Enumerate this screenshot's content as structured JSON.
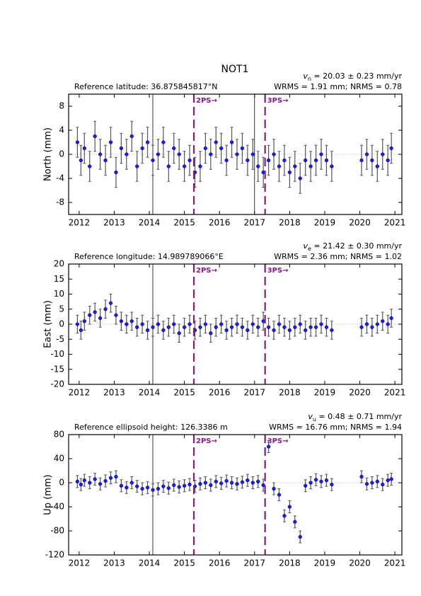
{
  "chart_data": [
    {
      "type": "scatter",
      "title": "NOT1",
      "rate": {
        "symbol": "v",
        "sub": "n",
        "text": " = 20.03 ± 0.23 mm/yr"
      },
      "reference": "Reference latitude: 36.875845817°N",
      "wrms": "WRMS = 1.91 mm; NRMS = 0.78",
      "ylabel": "North (mm)",
      "xlim": [
        2011.7,
        2021.2
      ],
      "xticks": [
        2012,
        2013,
        2014,
        2015,
        2016,
        2017,
        2018,
        2019,
        2020,
        2021
      ],
      "ylim": [
        -10,
        10
      ],
      "yticks": [
        -8,
        -4,
        0,
        4,
        8
      ],
      "color": "#1a1aff",
      "error_color": "#555555",
      "error": 2.5,
      "events": [
        {
          "label": "2PS→",
          "x": 2015.27
        },
        {
          "label": "3PS→",
          "x": 2017.3
        }
      ],
      "reference_lines": [
        2014.1,
        2017.0
      ],
      "x": [
        2011.95,
        2012.05,
        2012.15,
        2012.3,
        2012.45,
        2012.6,
        2012.75,
        2012.9,
        2013.05,
        2013.2,
        2013.35,
        2013.5,
        2013.65,
        2013.8,
        2013.95,
        2014.1,
        2014.25,
        2014.4,
        2014.55,
        2014.7,
        2014.85,
        2015.0,
        2015.15,
        2015.3,
        2015.45,
        2015.6,
        2015.75,
        2015.9,
        2016.05,
        2016.2,
        2016.35,
        2016.5,
        2016.65,
        2016.8,
        2016.95,
        2017.1,
        2017.25,
        2017.4,
        2017.55,
        2017.7,
        2017.85,
        2018.0,
        2018.15,
        2018.3,
        2018.45,
        2018.6,
        2018.75,
        2018.9,
        2019.05,
        2019.2,
        2020.05,
        2020.2,
        2020.35,
        2020.5,
        2020.65,
        2020.8,
        2020.9
      ],
      "values": [
        2,
        -1,
        1,
        -2,
        3,
        0,
        -1,
        2,
        -3,
        1,
        0,
        3,
        -2,
        1,
        2,
        -1,
        0,
        2,
        -2,
        1,
        0,
        -2,
        -1,
        -3,
        -2,
        1,
        0,
        2,
        1,
        -1,
        2,
        0,
        1,
        -1,
        0,
        -2,
        -3,
        -1,
        0,
        -2,
        -1,
        -3,
        -2,
        -4,
        -1,
        -2,
        -1,
        0,
        -1,
        -2,
        -1,
        0,
        -1,
        -2,
        0,
        -1,
        1
      ]
    },
    {
      "type": "scatter",
      "rate": {
        "symbol": "v",
        "sub": "e",
        "text": " = 21.42 ± 0.30 mm/yr"
      },
      "reference": "Reference longitude: 14.989789066°E",
      "wrms": "WRMS = 2.36 mm; NRMS = 1.02",
      "ylabel": "East (mm)",
      "xlim": [
        2011.7,
        2021.2
      ],
      "xticks": [
        2012,
        2013,
        2014,
        2015,
        2016,
        2017,
        2018,
        2019,
        2020,
        2021
      ],
      "ylim": [
        -20,
        20
      ],
      "yticks": [
        -20,
        -15,
        -10,
        -5,
        0,
        5,
        10,
        15,
        20
      ],
      "color": "#1a1aff",
      "error_color": "#555555",
      "error": 3,
      "events": [
        {
          "label": "2PS→",
          "x": 2015.27
        },
        {
          "label": "3PS→",
          "x": 2017.3
        }
      ],
      "reference_lines": [
        2014.1
      ],
      "x": [
        2011.95,
        2012.05,
        2012.15,
        2012.3,
        2012.45,
        2012.6,
        2012.75,
        2012.9,
        2013.05,
        2013.2,
        2013.35,
        2013.5,
        2013.65,
        2013.8,
        2013.95,
        2014.1,
        2014.25,
        2014.4,
        2014.55,
        2014.7,
        2014.85,
        2015.0,
        2015.15,
        2015.3,
        2015.45,
        2015.6,
        2015.75,
        2015.9,
        2016.05,
        2016.2,
        2016.35,
        2016.5,
        2016.65,
        2016.8,
        2016.95,
        2017.1,
        2017.25,
        2017.4,
        2017.55,
        2017.7,
        2017.85,
        2018.0,
        2018.15,
        2018.3,
        2018.45,
        2018.6,
        2018.75,
        2018.9,
        2019.05,
        2019.2,
        2020.05,
        2020.2,
        2020.35,
        2020.5,
        2020.65,
        2020.8,
        2020.9
      ],
      "values": [
        0,
        -2,
        1,
        3,
        4,
        2,
        5,
        7,
        3,
        1,
        0,
        1,
        -1,
        0,
        -2,
        -1,
        0,
        -2,
        -1,
        0,
        -3,
        -1,
        0,
        -2,
        -1,
        0,
        -3,
        -1,
        0,
        -2,
        -1,
        0,
        -1,
        -2,
        0,
        -1,
        1,
        -1,
        -2,
        0,
        -1,
        -2,
        -1,
        0,
        -2,
        -1,
        -1,
        0,
        -1,
        -2,
        -1,
        0,
        -1,
        0,
        1,
        0,
        2
      ]
    },
    {
      "type": "scatter",
      "rate": {
        "symbol": "v",
        "sub": "u",
        "text": " = 0.48 ± 0.71 mm/yr"
      },
      "reference": "Reference ellipsoid height: 126.3386 m",
      "wrms": "WRMS = 16.76 mm; NRMS = 1.94",
      "ylabel": "Up (mm)",
      "xlim": [
        2011.7,
        2021.2
      ],
      "xticks": [
        2012,
        2013,
        2014,
        2015,
        2016,
        2017,
        2018,
        2019,
        2020,
        2021
      ],
      "ylim": [
        -120,
        80
      ],
      "yticks": [
        -120,
        -80,
        -40,
        0,
        40,
        80
      ],
      "color": "#1a1aff",
      "error_color": "#555555",
      "error": 10,
      "events": [
        {
          "label": "2PS→",
          "x": 2015.27
        },
        {
          "label": "3PS→",
          "x": 2017.3
        }
      ],
      "reference_lines": [
        2014.1
      ],
      "x": [
        2011.95,
        2012.05,
        2012.15,
        2012.3,
        2012.45,
        2012.6,
        2012.75,
        2012.9,
        2013.05,
        2013.2,
        2013.35,
        2013.5,
        2013.65,
        2013.8,
        2013.95,
        2014.1,
        2014.25,
        2014.4,
        2014.55,
        2014.7,
        2014.85,
        2015.0,
        2015.15,
        2015.3,
        2015.45,
        2015.6,
        2015.75,
        2015.9,
        2016.05,
        2016.2,
        2016.35,
        2016.5,
        2016.65,
        2016.8,
        2016.95,
        2017.1,
        2017.25,
        2017.4,
        2017.55,
        2017.7,
        2017.85,
        2018.0,
        2018.15,
        2018.3,
        2018.45,
        2018.6,
        2018.75,
        2018.9,
        2019.05,
        2019.2,
        2020.05,
        2020.2,
        2020.35,
        2020.5,
        2020.65,
        2020.8,
        2020.9
      ],
      "values": [
        2,
        -3,
        4,
        0,
        6,
        -2,
        3,
        8,
        10,
        -5,
        -8,
        0,
        -6,
        -10,
        -8,
        -12,
        -10,
        -6,
        -9,
        -4,
        -7,
        -5,
        -3,
        -6,
        -2,
        0,
        -4,
        2,
        -1,
        3,
        0,
        -2,
        1,
        4,
        0,
        2,
        -4,
        60,
        -10,
        -20,
        -55,
        -40,
        -65,
        -90,
        -5,
        0,
        5,
        2,
        4,
        -3,
        10,
        -2,
        0,
        2,
        -3,
        4,
        6
      ]
    }
  ]
}
